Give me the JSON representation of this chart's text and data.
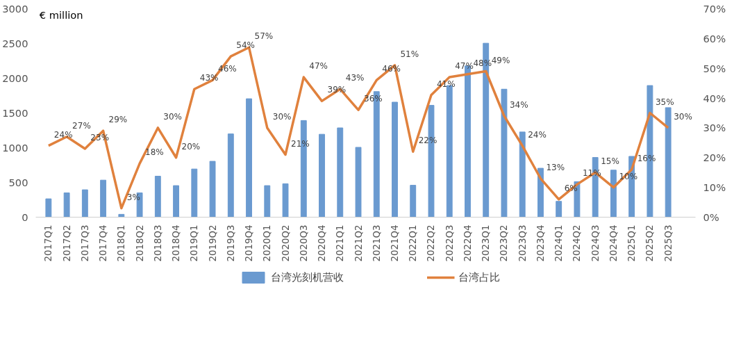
{
  "chart_data": {
    "type": "bar",
    "ylabel": "€ million",
    "categories": [
      "2017Q1",
      "2017Q2",
      "2017Q3",
      "2017Q4",
      "2018Q1",
      "2018Q2",
      "2018Q3",
      "2018Q4",
      "2019Q1",
      "2019Q2",
      "2019Q3",
      "2019Q4",
      "2020Q1",
      "2020Q2",
      "2020Q3",
      "2020Q4",
      "2021Q1",
      "2021Q2",
      "2021Q3",
      "2021Q4",
      "2022Q1",
      "2022Q2",
      "2022Q3",
      "2022Q4",
      "2023Q1",
      "2023Q2",
      "2023Q3",
      "2023Q4",
      "2024Q1",
      "2024Q2",
      "2024Q3",
      "2024Q4",
      "2025Q1",
      "2025Q2",
      "2025Q3"
    ],
    "series": [
      {
        "name": "台湾光刻机营收",
        "color": "#6a9ad0",
        "values": [
          264,
          350,
          394,
          533,
          41,
          350,
          590,
          454,
          693,
          804,
          1198,
          1704,
          454,
          481,
          1391,
          1193,
          1285,
          1005,
          1807,
          1655,
          459,
          1609,
          1894,
          2177,
          2503,
          1842,
          1226,
          704,
          228,
          511,
          859,
          677,
          875,
          1894,
          1576
        ]
      },
      {
        "name": "台湾占比",
        "type": "line",
        "axis": "y2",
        "color": "#e0813d",
        "values": [
          24,
          27,
          23,
          29,
          3,
          18,
          30,
          20,
          43,
          46,
          54,
          57,
          30,
          21,
          47,
          39,
          43,
          36,
          46,
          51,
          22,
          41,
          47,
          48,
          49,
          34,
          24,
          13,
          6,
          11,
          15,
          10,
          16,
          35,
          30
        ],
        "value_labels": [
          "24%",
          "27%",
          "23%",
          "29%",
          "3%",
          "18%",
          "30%",
          "20%",
          "43%",
          "46%",
          "54%",
          "57%",
          "30%",
          "21%",
          "47%",
          "39%",
          "43%",
          "36%",
          "46%",
          "51%",
          "22%",
          "41%",
          "47%",
          "48%",
          "49%",
          "34%",
          "24%",
          "13%",
          "6%",
          "11%",
          "15%",
          "10%",
          "16%",
          "35%",
          "30%"
        ]
      }
    ],
    "ylim": [
      0,
      3000
    ],
    "yticks": [
      0,
      500,
      1000,
      1500,
      2000,
      2500,
      3000
    ],
    "y2lim": [
      0,
      70
    ],
    "y2ticks": [
      {
        "value": 0,
        "label": "0%"
      },
      {
        "value": 10,
        "label": "10%"
      },
      {
        "value": 20,
        "label": "20%"
      },
      {
        "value": 30,
        "label": "30%"
      },
      {
        "value": 40,
        "label": "40%"
      },
      {
        "value": 50,
        "label": "50%"
      },
      {
        "value": 60,
        "label": "60%"
      },
      {
        "value": 70,
        "label": "70%"
      }
    ],
    "grid": false,
    "legend": "bottom",
    "marker": "none",
    "line_style": "solid"
  }
}
